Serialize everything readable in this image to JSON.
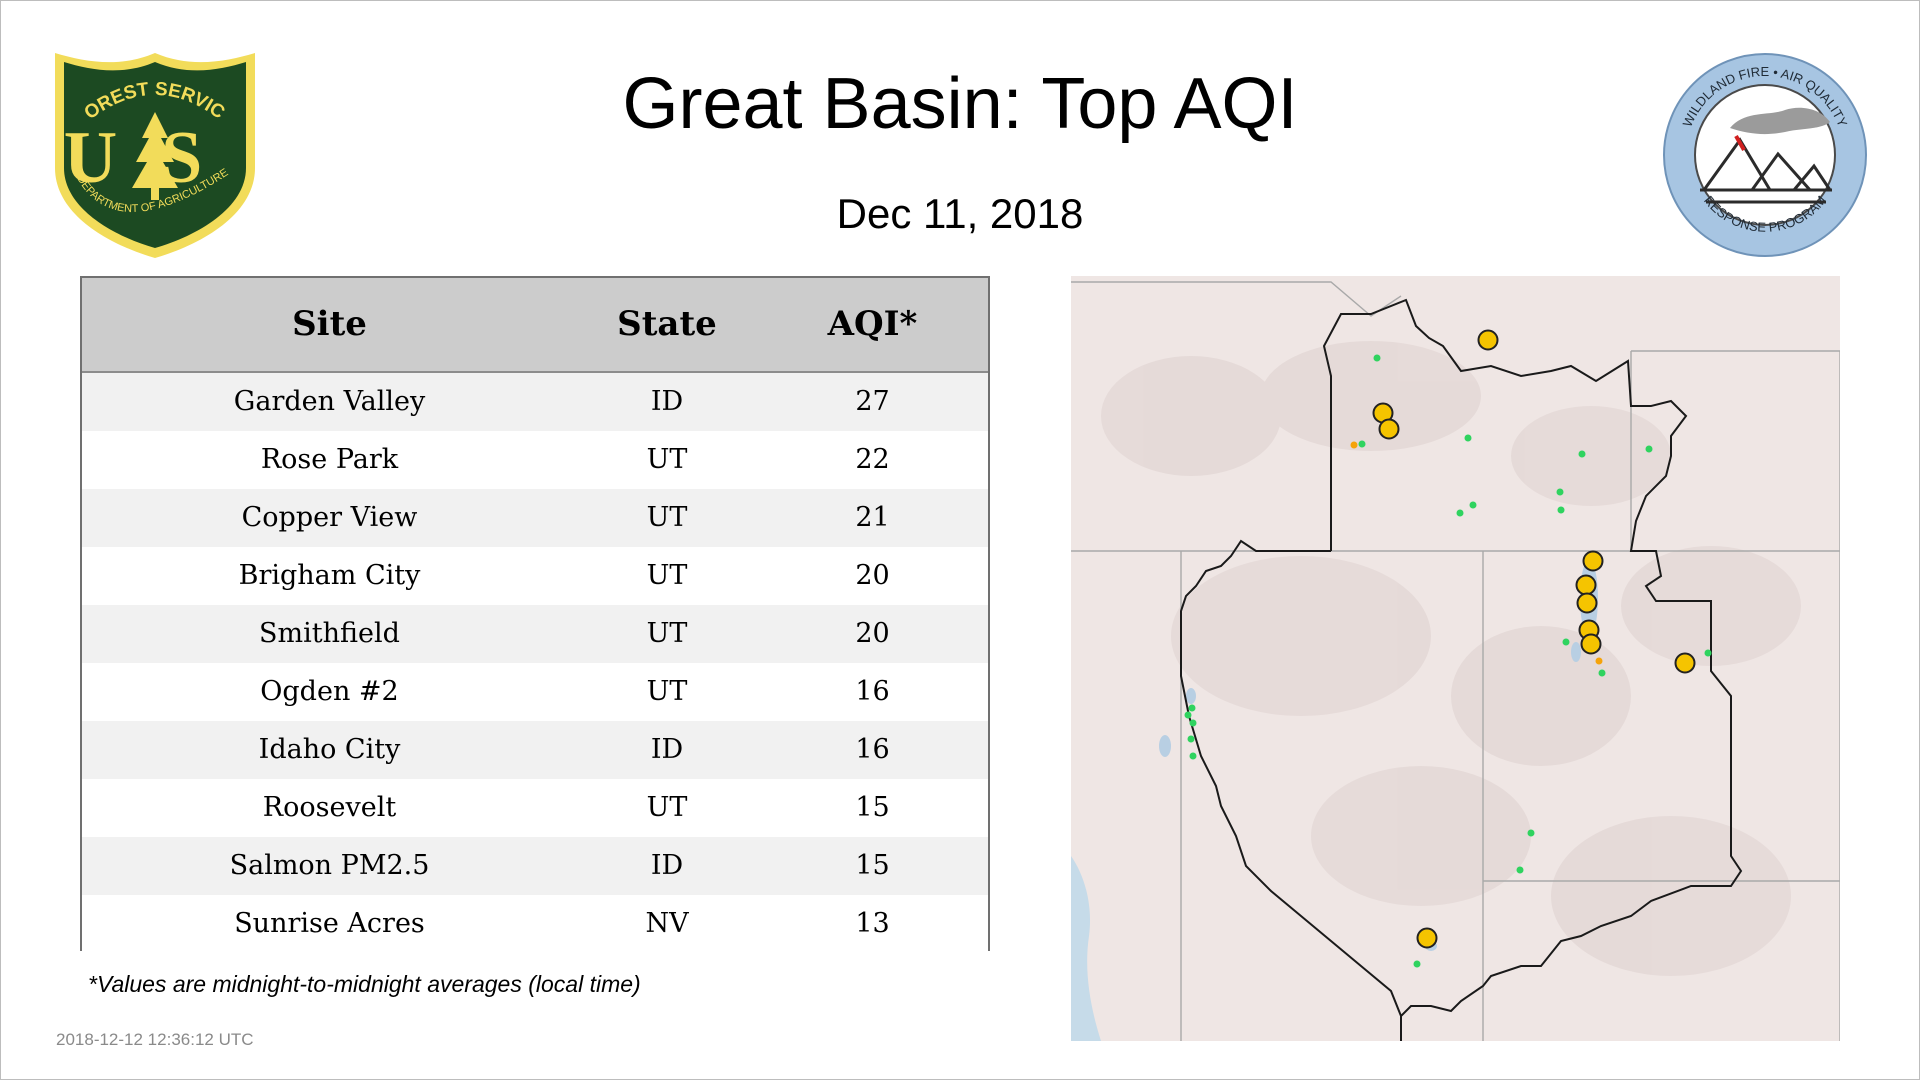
{
  "header": {
    "title": "Great Basin: Top AQI",
    "date": "Dec 11, 2018"
  },
  "logos": {
    "forest_service": {
      "arc_text": "FOREST SERVICE",
      "monogram": "US",
      "bottom_text": "DEPARTMENT OF AGRICULTURE"
    },
    "wildland_fire": {
      "top_text": "WILDLAND FIRE • AIR QUALITY",
      "bottom_text": "RESPONSE PROGRAM"
    }
  },
  "table": {
    "columns": [
      "Site",
      "State",
      "AQI*"
    ],
    "rows": [
      {
        "site": "Garden Valley",
        "state": "ID",
        "aqi": "27"
      },
      {
        "site": "Rose Park",
        "state": "UT",
        "aqi": "22"
      },
      {
        "site": "Copper View",
        "state": "UT",
        "aqi": "21"
      },
      {
        "site": "Brigham City",
        "state": "UT",
        "aqi": "20"
      },
      {
        "site": "Smithfield",
        "state": "UT",
        "aqi": "20"
      },
      {
        "site": "Ogden #2",
        "state": "UT",
        "aqi": "16"
      },
      {
        "site": "Idaho City",
        "state": "ID",
        "aqi": "16"
      },
      {
        "site": "Roosevelt",
        "state": "UT",
        "aqi": "15"
      },
      {
        "site": "Salmon PM2.5",
        "state": "ID",
        "aqi": "15"
      },
      {
        "site": "Sunrise Acres",
        "state": "NV",
        "aqi": "13"
      }
    ]
  },
  "footnote": "*Values are midnight-to-midnight averages (local time)",
  "timestamp": "2018-12-12 12:36:12 UTC",
  "colors": {
    "fs_green": "#1c4a22",
    "fs_gold": "#f2dc5a",
    "wf_ring": "#a7c5e2",
    "table_header_bg": "#cccccc",
    "row_alt_bg": "#f1f1f1",
    "map_land": "#efe6e4",
    "aqi_good": "#2fd35f",
    "aqi_moderate": "#f5c400",
    "aqi_usg": "#f5a30a"
  }
}
